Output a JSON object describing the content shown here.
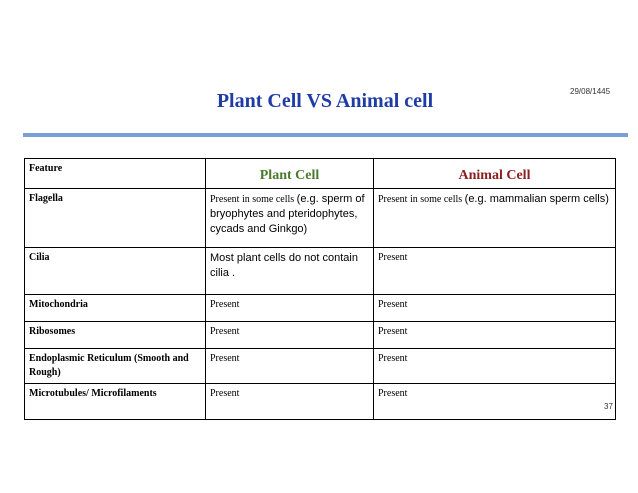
{
  "date": "29/08/1445",
  "title": "Plant Cell VS Animal cell",
  "page_number": "37",
  "colors": {
    "title": "#1f3ca6",
    "plant_header": "#4a7a2e",
    "animal_header": "#8a1f1f",
    "rule": "#7a9fd6"
  },
  "table": {
    "headers": {
      "feature": "Feature",
      "plant": "Plant Cell",
      "animal": "Animal Cell"
    },
    "rows": [
      {
        "feature": "Flagella",
        "plant_a": "Present in some cells ",
        "plant_b": "(e.g. sperm of bryophytes and pteridophytes, cycads and Ginkgo)",
        "animal_a": "Present in some cells ",
        "animal_b": "(e.g. mammalian sperm cells)"
      },
      {
        "feature": "Cilia",
        "plant": "Most plant cells do not contain cilia .",
        "animal": "Present"
      },
      {
        "feature": "Mitochondria",
        "plant": "Present",
        "animal": "Present"
      },
      {
        "feature": "Ribosomes",
        "plant": "Present",
        "animal": "Present"
      },
      {
        "feature": "Endoplasmic Reticulum (Smooth and Rough)",
        "plant": "Present",
        "animal": "Present"
      },
      {
        "feature": "Microtubules/ Microfilaments",
        "plant": "Present",
        "animal": "Present"
      }
    ]
  }
}
